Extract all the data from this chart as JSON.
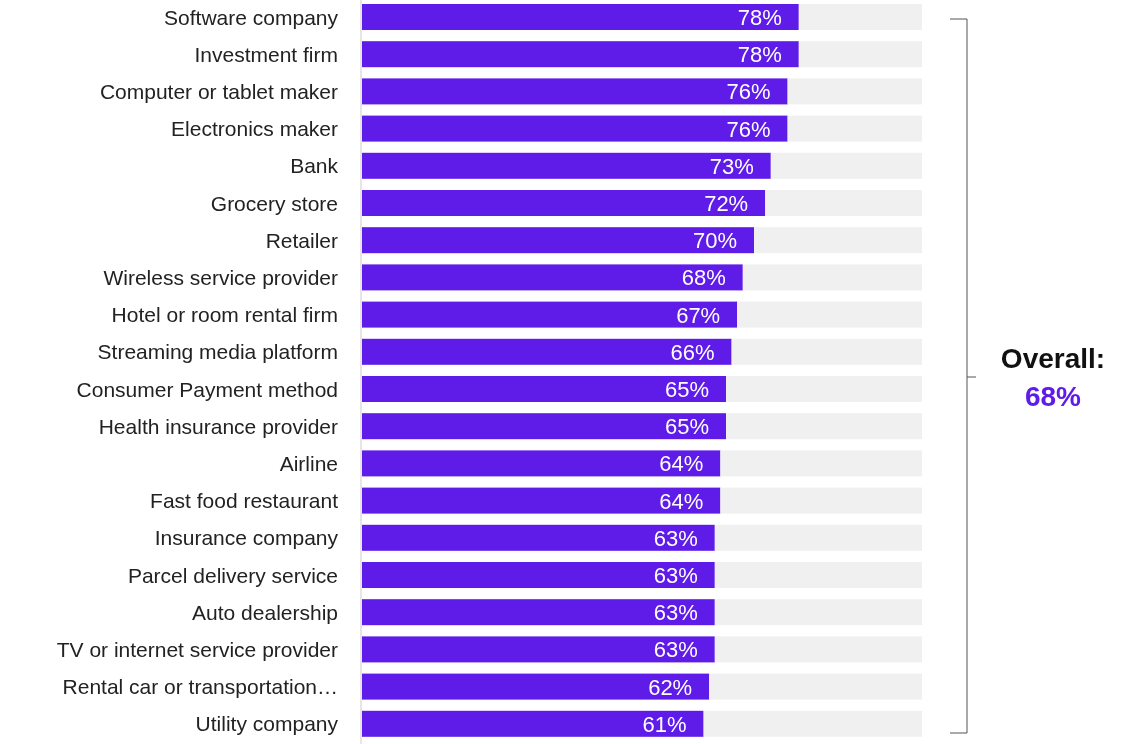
{
  "chart_data": {
    "type": "bar",
    "orientation": "horizontal",
    "stacked": true,
    "categories": [
      "Software company",
      "Investment firm",
      "Computer or tablet maker",
      "Electronics maker",
      "Bank",
      "Grocery store",
      "Retailer",
      "Wireless service provider",
      "Hotel or room rental firm",
      "Streaming media platform",
      "Consumer Payment method",
      "Health insurance provider",
      "Airline",
      "Fast food restaurant",
      "Insurance company",
      "Parcel delivery service",
      "Auto dealership",
      "TV or internet service provider",
      "Rental car or transportation…",
      "Utility company"
    ],
    "series": [
      {
        "color": "#5f1ce8",
        "values": [
          78,
          78,
          76,
          76,
          73,
          72,
          70,
          68,
          67,
          66,
          65,
          65,
          64,
          64,
          63,
          63,
          63,
          63,
          62,
          61
        ],
        "value_labels": [
          "78%",
          "78%",
          "76%",
          "76%",
          "73%",
          "72%",
          "70%",
          "68%",
          "67%",
          "66%",
          "65%",
          "65%",
          "64%",
          "64%",
          "63%",
          "63%",
          "63%",
          "63%",
          "62%",
          "61%"
        ]
      },
      {
        "color": "#f0f0f0",
        "values": [
          22,
          22,
          24,
          24,
          27,
          28,
          30,
          32,
          33,
          34,
          35,
          35,
          36,
          36,
          37,
          37,
          37,
          37,
          38,
          39
        ]
      }
    ],
    "tick_labels": "y",
    "annotations": [
      "Overall:",
      "68%"
    ]
  }
}
